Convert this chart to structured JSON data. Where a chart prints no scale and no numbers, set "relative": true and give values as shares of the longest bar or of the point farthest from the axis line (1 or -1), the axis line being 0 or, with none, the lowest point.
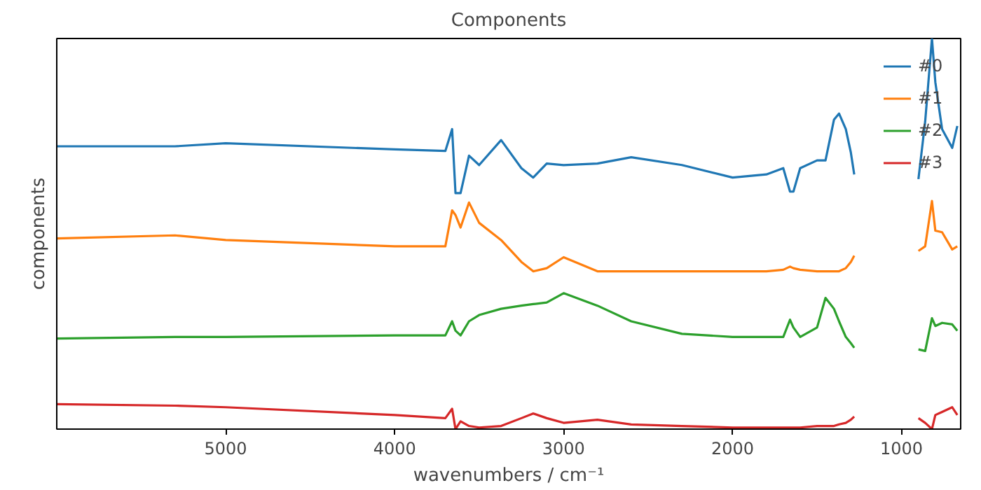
{
  "chart_data": {
    "type": "line",
    "title": "Components",
    "xlabel": "wavenumbers / cm⁻¹",
    "ylabel": "components",
    "relative": true,
    "x": [
      6000,
      5300,
      5000,
      4000,
      3700,
      3660,
      3640,
      3610,
      3560,
      3500,
      3370,
      3250,
      3180,
      3100,
      3000,
      2800,
      2600,
      2300,
      2000,
      1800,
      1700,
      1660,
      1640,
      1600,
      1500,
      1450,
      1400,
      1370,
      1330,
      1300,
      1280,
      1100,
      900,
      860,
      820,
      800,
      760,
      700,
      670
    ],
    "xlim": [
      6000,
      650
    ],
    "xticks": [
      5000,
      4000,
      3000,
      2000,
      1000
    ],
    "tick_labels": "x",
    "grid": false,
    "legend": "top right",
    "line_style": "solid",
    "marker": "none",
    "series": [
      {
        "name": "#0",
        "color": "#1f77b4",
        "values": [
          0.724,
          0.724,
          0.732,
          0.716,
          0.712,
          0.768,
          0.604,
          0.604,
          0.7,
          0.676,
          0.74,
          0.668,
          0.644,
          0.68,
          0.676,
          0.68,
          0.696,
          0.676,
          0.644,
          0.652,
          0.668,
          0.608,
          0.608,
          0.668,
          0.688,
          0.688,
          0.792,
          0.808,
          0.768,
          0.708,
          0.652,
          null,
          0.64,
          0.788,
          1,
          0.888,
          0.768,
          0.72,
          0.776
        ]
      },
      {
        "name": "#1",
        "color": "#ff7f0e",
        "values": [
          0.488,
          0.496,
          0.484,
          0.468,
          0.468,
          0.56,
          0.548,
          0.516,
          0.58,
          0.528,
          0.484,
          0.428,
          0.404,
          0.412,
          0.44,
          0.404,
          0.404,
          0.404,
          0.404,
          0.404,
          0.408,
          0.416,
          0.412,
          0.408,
          0.404,
          0.404,
          0.404,
          0.404,
          0.412,
          0.428,
          0.444,
          null,
          0.456,
          0.468,
          0.584,
          0.508,
          0.504,
          0.46,
          0.468
        ]
      },
      {
        "name": "#2",
        "color": "#2ca02c",
        "values": [
          0.232,
          0.236,
          0.236,
          0.24,
          0.24,
          0.276,
          0.252,
          0.24,
          0.276,
          0.292,
          0.308,
          0.316,
          0.32,
          0.324,
          0.348,
          0.316,
          0.276,
          0.244,
          0.236,
          0.236,
          0.236,
          0.28,
          0.26,
          0.236,
          0.26,
          0.336,
          0.308,
          0.276,
          0.236,
          0.22,
          0.208,
          null,
          0.204,
          0.2,
          0.284,
          0.264,
          0.272,
          0.268,
          0.252
        ]
      },
      {
        "name": "#3",
        "color": "#d62728",
        "values": [
          0.064,
          0.06,
          0.056,
          0.036,
          0.028,
          0.052,
          0,
          0.02,
          0.008,
          0.004,
          0.008,
          0.028,
          0.04,
          0.028,
          0.016,
          0.024,
          0.012,
          0.008,
          0.004,
          0.004,
          0.004,
          0.004,
          0.004,
          0.004,
          0.008,
          0.008,
          0.008,
          0.012,
          0.016,
          0.024,
          0.032,
          null,
          0.028,
          0.016,
          0,
          0.036,
          0.044,
          0.056,
          0.036
        ]
      }
    ]
  }
}
